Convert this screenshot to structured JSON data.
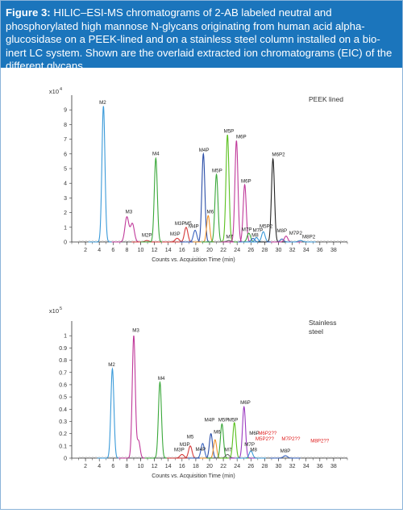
{
  "figure": {
    "label": "Figure 3:",
    "caption": "HILIC–ESI-MS chromatograms of 2-AB labeled neutral and phosphorylated high mannose N-glycans originating from human acid alpha-glucosidase on a PEEK-lined and on a stainless steel column installed on a bio-inert LC system. Shown are the overlaid extracted ion chromatograms (EIC) of the different glycans."
  },
  "chart_data": [
    {
      "type": "line",
      "title": "PEEK  lined",
      "xlabel": "Counts vs. Acquisition Time (min)",
      "ylabel": "",
      "y_multiplier": "x10",
      "y_multiplier_exp": "4",
      "xlim": [
        0,
        40
      ],
      "ylim": [
        0,
        10
      ],
      "x_ticks": [
        2,
        4,
        6,
        8,
        10,
        12,
        14,
        16,
        18,
        20,
        22,
        24,
        26,
        28,
        30,
        32,
        34,
        36,
        38
      ],
      "y_ticks": [
        0,
        1,
        2,
        3,
        4,
        5,
        6,
        7,
        8,
        9
      ],
      "legend": "none",
      "series": [
        {
          "label": "M2",
          "color": "#3a9ad9",
          "rt": 4.6,
          "height": 9.25,
          "width": 0.22
        },
        {
          "label": "M3",
          "color": "#c0399a",
          "rt": 8.0,
          "height": 1.7,
          "width": 0.28,
          "shoulder": [
            8.8,
            1.25
          ]
        },
        {
          "label": "M2P",
          "color": "#d63a3a",
          "rt": 10.9,
          "height": 0.1,
          "width": 0.3
        },
        {
          "label": "M4",
          "color": "#3aa83a",
          "rt": 12.2,
          "height": 5.7,
          "width": 0.22
        },
        {
          "label": "M3P",
          "color": "#d63a3a",
          "rt": 15.3,
          "height": 0.25,
          "width": 0.3
        },
        {
          "label": "M5",
          "color": "#d63a3a",
          "rt": 16.6,
          "height": 1.0,
          "width": 0.25
        },
        {
          "label": "M4P",
          "color": "#3a64c0",
          "rt": 17.9,
          "height": 0.8,
          "width": 0.25
        },
        {
          "label": "M4P",
          "color": "#2b4ea8",
          "rt": 19.1,
          "height": 6.0,
          "width": 0.22
        },
        {
          "label": "M6",
          "color": "#f0932b",
          "rt": 19.8,
          "height": 1.8,
          "width": 0.22
        },
        {
          "label": "M5P",
          "color": "#3aa83a",
          "rt": 21.0,
          "height": 4.6,
          "width": 0.22
        },
        {
          "label": "M5P",
          "color": "#5ac01e",
          "rt": 22.6,
          "height": 7.3,
          "width": 0.22
        },
        {
          "label": "M7",
          "color": "#6a6a6a",
          "rt": 22.8,
          "height": 0.1,
          "width": 0.3
        },
        {
          "label": "M6P",
          "color": "#c0399a",
          "rt": 23.9,
          "height": 6.9,
          "width": 0.22
        },
        {
          "label": "M6P",
          "color": "#c0399a",
          "rt": 25.1,
          "height": 3.9,
          "width": 0.22
        },
        {
          "label": "M7P",
          "color": "#3aa83a",
          "rt": 25.7,
          "height": 0.6,
          "width": 0.25
        },
        {
          "label": "M8",
          "color": "#3a64c0",
          "rt": 26.3,
          "height": 0.25,
          "width": 0.25
        },
        {
          "label": "M7P",
          "color": "#3a9ad9",
          "rt": 26.8,
          "height": 0.3,
          "width": 0.25
        },
        {
          "label": "M5P2",
          "color": "#3a9ad9",
          "rt": 27.8,
          "height": 0.7,
          "width": 0.25
        },
        {
          "label": "M6P2",
          "color": "#222222",
          "rt": 29.2,
          "height": 5.65,
          "width": 0.22
        },
        {
          "label": "M8P",
          "color": "#3a64c0",
          "rt": 30.5,
          "height": 0.2,
          "width": 0.25
        },
        {
          "label": "M7P2",
          "color": "#c0399a",
          "rt": 31.1,
          "height": 0.4,
          "width": 0.25
        },
        {
          "label": "M8P2",
          "color": "#3a9ad9",
          "rt": 33.2,
          "height": 0.1,
          "width": 0.3
        }
      ],
      "annotations": [
        {
          "text": "M2",
          "x": 4.5,
          "y": 9.4
        },
        {
          "text": "M3",
          "x": 8.3,
          "y": 1.95
        },
        {
          "text": "M2P",
          "x": 10.9,
          "y": 0.35
        },
        {
          "text": "M4",
          "x": 12.2,
          "y": 5.9
        },
        {
          "text": "M3P",
          "x": 15.0,
          "y": 0.45
        },
        {
          "text": "M3P",
          "x": 15.7,
          "y": 1.15
        },
        {
          "text": "M5",
          "x": 16.9,
          "y": 1.15
        },
        {
          "text": "M4P",
          "x": 17.7,
          "y": 0.95
        },
        {
          "text": "M4P",
          "x": 19.2,
          "y": 6.15
        },
        {
          "text": "M6",
          "x": 20.1,
          "y": 1.95
        },
        {
          "text": "M5P",
          "x": 21.1,
          "y": 4.75
        },
        {
          "text": "M5P",
          "x": 22.8,
          "y": 7.45
        },
        {
          "text": "M7",
          "x": 22.9,
          "y": 0.25
        },
        {
          "text": "M6P",
          "x": 24.6,
          "y": 7.05
        },
        {
          "text": "M6P",
          "x": 25.3,
          "y": 4.05
        },
        {
          "text": "M7P",
          "x": 25.4,
          "y": 0.75
        },
        {
          "text": "M8",
          "x": 26.6,
          "y": 0.35
        },
        {
          "text": "M7P",
          "x": 27.0,
          "y": 0.7
        },
        {
          "text": "M5P2",
          "x": 28.2,
          "y": 0.95
        },
        {
          "text": "M6P2",
          "x": 30.0,
          "y": 5.85
        },
        {
          "text": "M8P",
          "x": 30.5,
          "y": 0.65
        },
        {
          "text": "M7P2",
          "x": 32.5,
          "y": 0.5
        },
        {
          "text": "M8P2",
          "x": 34.4,
          "y": 0.25
        }
      ]
    },
    {
      "type": "line",
      "title": "Stainless steel",
      "title_lines": [
        "Stainless",
        "steel"
      ],
      "xlabel": "Counts vs. Acquisition Time (min)",
      "ylabel": "",
      "y_multiplier": "x10",
      "y_multiplier_exp": "5",
      "xlim": [
        0,
        40
      ],
      "ylim": [
        0,
        1.12
      ],
      "x_ticks": [
        2,
        4,
        6,
        8,
        10,
        12,
        14,
        16,
        18,
        20,
        22,
        24,
        26,
        28,
        30,
        32,
        34,
        36,
        38
      ],
      "y_ticks": [
        0,
        0.1,
        0.2,
        0.3,
        0.4,
        0.5,
        0.6,
        0.7,
        0.8,
        0.9,
        1
      ],
      "legend": "none",
      "series": [
        {
          "label": "M2",
          "color": "#3a9ad9",
          "rt": 5.9,
          "height": 0.73,
          "width": 0.22
        },
        {
          "label": "M3",
          "color": "#c0399a",
          "rt": 9.0,
          "height": 1.0,
          "width": 0.22,
          "shoulder": [
            9.7,
            0.14
          ]
        },
        {
          "label": "M4",
          "color": "#3aa83a",
          "rt": 12.8,
          "height": 0.62,
          "width": 0.22
        },
        {
          "label": "M3P",
          "color": "#d63a3a",
          "rt": 16.0,
          "height": 0.03,
          "width": 0.3
        },
        {
          "label": "M5",
          "color": "#d63a3a",
          "rt": 17.2,
          "height": 0.1,
          "width": 0.25
        },
        {
          "label": "M4P",
          "color": "#3a64c0",
          "rt": 19.0,
          "height": 0.12,
          "width": 0.25
        },
        {
          "label": "M4P",
          "color": "#2b4ea8",
          "rt": 20.2,
          "height": 0.2,
          "width": 0.22
        },
        {
          "label": "M6",
          "color": "#f0932b",
          "rt": 20.8,
          "height": 0.15,
          "width": 0.22
        },
        {
          "label": "M5P",
          "color": "#3aa83a",
          "rt": 21.8,
          "height": 0.28,
          "width": 0.22
        },
        {
          "label": "M7",
          "color": "#6a6a6a",
          "rt": 22.6,
          "height": 0.03,
          "width": 0.3
        },
        {
          "label": "M5P",
          "color": "#5ac01e",
          "rt": 23.6,
          "height": 0.29,
          "width": 0.22
        },
        {
          "label": "M6P",
          "color": "#9b3ac0",
          "rt": 25.0,
          "height": 0.42,
          "width": 0.22
        },
        {
          "label": "M7P",
          "color": "#3a9ad9",
          "rt": 26.0,
          "height": 0.06,
          "width": 0.25
        },
        {
          "label": "M8P",
          "color": "#3a64c0",
          "rt": 31.0,
          "height": 0.02,
          "width": 0.3
        }
      ],
      "annotations": [
        {
          "text": "M2",
          "x": 5.8,
          "y": 0.75
        },
        {
          "text": "M3",
          "x": 9.3,
          "y": 1.03
        },
        {
          "text": "M4",
          "x": 13.0,
          "y": 0.64
        },
        {
          "text": "M3P",
          "x": 15.6,
          "y": 0.055
        },
        {
          "text": "M3P",
          "x": 16.4,
          "y": 0.1
        },
        {
          "text": "M5",
          "x": 17.2,
          "y": 0.16
        },
        {
          "text": "M4P",
          "x": 18.7,
          "y": 0.06
        },
        {
          "text": "M4P",
          "x": 20.0,
          "y": 0.3
        },
        {
          "text": "M6",
          "x": 21.1,
          "y": 0.2
        },
        {
          "text": "M5P",
          "x": 22.0,
          "y": 0.3
        },
        {
          "text": "M5P",
          "x": 23.4,
          "y": 0.3
        },
        {
          "text": "M7",
          "x": 22.7,
          "y": 0.055
        },
        {
          "text": "M6P",
          "x": 25.2,
          "y": 0.44
        },
        {
          "text": "M6P",
          "x": 26.5,
          "y": 0.19
        },
        {
          "text": "M7P",
          "x": 25.8,
          "y": 0.1
        },
        {
          "text": "M8",
          "x": 26.4,
          "y": 0.055
        },
        {
          "text": "M8P",
          "x": 31.0,
          "y": 0.045
        }
      ],
      "unconfirmed_labels": [
        {
          "text": "M6P2??",
          "x": 28.4,
          "y": 0.19,
          "color": "#e02020"
        },
        {
          "text": "M5P2??",
          "x": 28.0,
          "y": 0.145,
          "color": "#e02020"
        },
        {
          "text": "M7P2??",
          "x": 31.8,
          "y": 0.145,
          "color": "#e02020"
        },
        {
          "text": "M8P2??",
          "x": 36.0,
          "y": 0.13,
          "color": "#e02020"
        }
      ]
    }
  ]
}
